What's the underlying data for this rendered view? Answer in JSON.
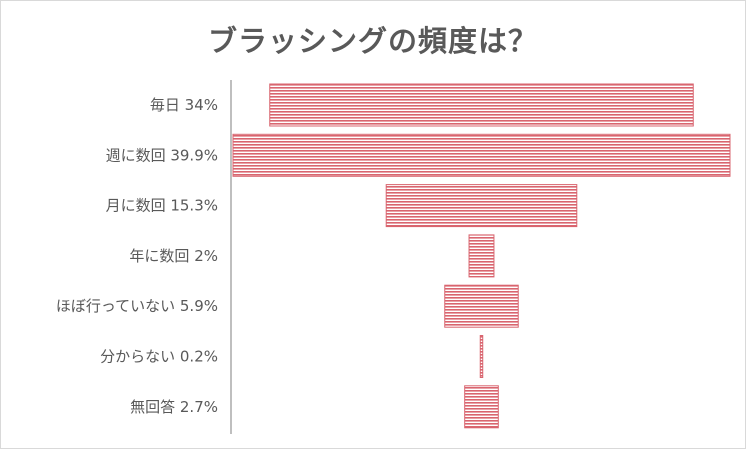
{
  "chart_data": {
    "type": "bar",
    "subtype": "funnel",
    "title": "ブラッシングの頻度は？",
    "categories": [
      "毎日 34%",
      "週に数回 39.9%",
      "月に数回 15.3%",
      "年に数回 2%",
      "ほぼ行っていない 5.9%",
      "分からない 0.2%",
      "無回答 2.7%"
    ],
    "values": [
      34,
      39.9,
      15.3,
      2,
      5.9,
      0.2,
      2.7
    ],
    "unit": "%",
    "bar_color": "#d9656f",
    "bar_pattern": "horizontal-stripes",
    "axis_color": "#bfbfbf",
    "grid": false,
    "legend": "none"
  }
}
